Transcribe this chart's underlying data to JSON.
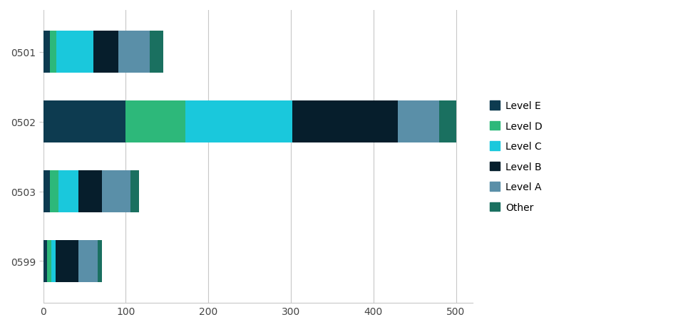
{
  "categories": [
    "0599",
    "0503",
    "0502",
    "0501"
  ],
  "levels": [
    "Level E",
    "Level D",
    "Level C",
    "Level B",
    "Level A",
    "Other"
  ],
  "colors": {
    "Level E": "#0d3b50",
    "Level D": "#2db87a",
    "Level C": "#1ac8dc",
    "Level B": "#061e2c",
    "Level A": "#5a8fa8",
    "Other": "#1a7060"
  },
  "data": {
    "0501": {
      "Level E": 8,
      "Level D": 8,
      "Level C": 45,
      "Level B": 30,
      "Level A": 38,
      "Other": 16
    },
    "0502": {
      "Level E": 100,
      "Level D": 72,
      "Level C": 130,
      "Level B": 128,
      "Level A": 50,
      "Other": 20
    },
    "0503": {
      "Level E": 8,
      "Level D": 10,
      "Level C": 25,
      "Level B": 28,
      "Level A": 35,
      "Other": 10
    },
    "0599": {
      "Level E": 5,
      "Level D": 5,
      "Level C": 5,
      "Level B": 28,
      "Level A": 23,
      "Other": 5
    }
  },
  "xlim": [
    0,
    520
  ],
  "xticks": [
    0,
    100,
    200,
    300,
    400,
    500
  ],
  "background_color": "#ffffff",
  "grid_color": "#c8c8c8",
  "tick_fontsize": 10,
  "legend_fontsize": 10,
  "bar_height": 0.6,
  "figsize": [
    9.45,
    4.6
  ],
  "dpi": 100
}
